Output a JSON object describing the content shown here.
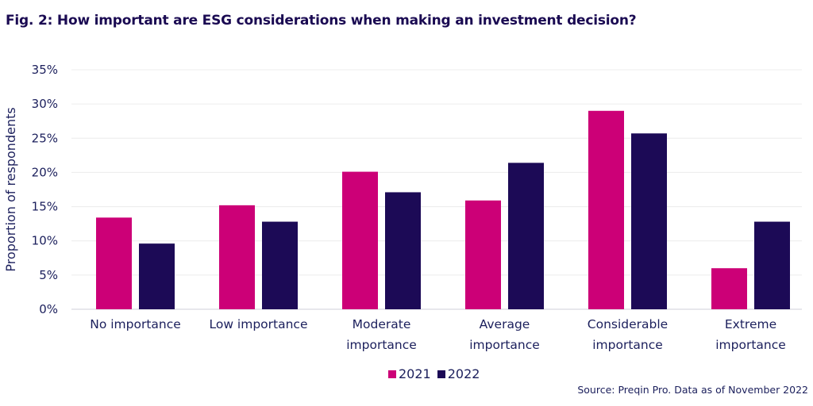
{
  "colors": {
    "series_2021": "#cc0077",
    "series_2022": "#1c0a56",
    "text": "#1b1f5c"
  },
  "chart_data": {
    "type": "bar",
    "title": "Fig. 2: How important are ESG considerations when making an investment decision?",
    "xlabel": "",
    "ylabel": "Proportion of respondents",
    "ylim": [
      0,
      35
    ],
    "yticks": [
      "0%",
      "5%",
      "10%",
      "15%",
      "20%",
      "25%",
      "30%",
      "35%"
    ],
    "categories": [
      [
        "No importance"
      ],
      [
        "Low importance"
      ],
      [
        "Moderate",
        "importance"
      ],
      [
        "Average",
        "importance"
      ],
      [
        "Considerable",
        "importance"
      ],
      [
        "Extreme",
        "importance"
      ]
    ],
    "series": [
      {
        "name": "2021",
        "values": [
          13.4,
          15.2,
          20.1,
          15.9,
          29.0,
          6.0
        ]
      },
      {
        "name": "2022",
        "values": [
          9.6,
          12.8,
          17.1,
          21.4,
          25.7,
          12.8
        ]
      }
    ],
    "legend": "bottom-center",
    "source": "Source: Preqin Pro. Data as of November 2022"
  }
}
